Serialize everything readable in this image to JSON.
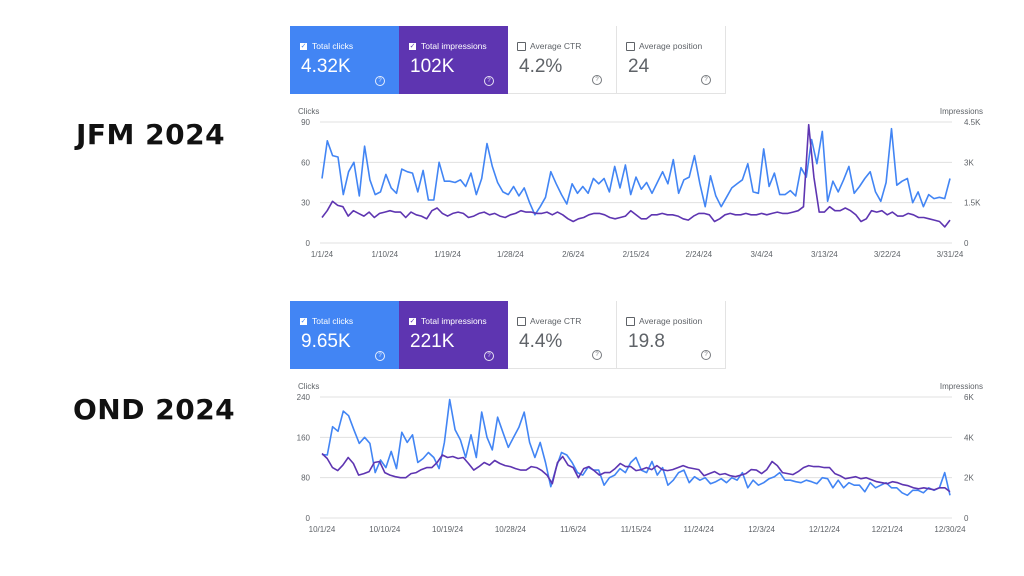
{
  "panels": [
    {
      "period_label": "JFM 2024",
      "metrics": [
        {
          "label": "Total clicks",
          "value": "4.32K",
          "checked": true
        },
        {
          "label": "Total impressions",
          "value": "102K",
          "checked": true
        },
        {
          "label": "Average CTR",
          "value": "4.2%",
          "checked": false
        },
        {
          "label": "Average position",
          "value": "24",
          "checked": false
        }
      ]
    },
    {
      "period_label": "OND 2024",
      "metrics": [
        {
          "label": "Total clicks",
          "value": "9.65K",
          "checked": true
        },
        {
          "label": "Total impressions",
          "value": "221K",
          "checked": true
        },
        {
          "label": "Average CTR",
          "value": "4.4%",
          "checked": false
        },
        {
          "label": "Average position",
          "value": "19.8",
          "checked": false
        }
      ]
    }
  ],
  "colors": {
    "clicks": "#4285f4",
    "impressions": "#5e35b1",
    "grid": "#e0e0e0"
  },
  "chart_data": [
    {
      "type": "line",
      "left_axis_label": "Clicks",
      "right_axis_label": "Impressions",
      "left_ticks": [
        "90",
        "60",
        "30",
        "0"
      ],
      "left_ylim": [
        0,
        90
      ],
      "right_ticks": [
        "4.5K",
        "3K",
        "1.5K",
        "0"
      ],
      "right_ylim": [
        0,
        4500
      ],
      "x_tick_labels": [
        "1/1/24",
        "1/10/24",
        "1/19/24",
        "1/28/24",
        "2/6/24",
        "2/15/24",
        "2/24/24",
        "3/4/24",
        "3/13/24",
        "3/22/24",
        "3/31/24"
      ],
      "series": [
        {
          "name": "Clicks",
          "axis": "left",
          "values": [
            48,
            76,
            65,
            64,
            36,
            53,
            60,
            35,
            72,
            47,
            36,
            38,
            51,
            41,
            37,
            55,
            53,
            52,
            38,
            54,
            32,
            32,
            60,
            46,
            46,
            45,
            47,
            42,
            52,
            36,
            48,
            74,
            57,
            45,
            38,
            36,
            42,
            35,
            41,
            30,
            21,
            27,
            34,
            53,
            44,
            36,
            29,
            44,
            37,
            42,
            37,
            48,
            44,
            48,
            38,
            57,
            41,
            58,
            36,
            49,
            40,
            45,
            37,
            45,
            53,
            44,
            62,
            37,
            47,
            49,
            65,
            44,
            27,
            50,
            35,
            27,
            34,
            41,
            44,
            47,
            59,
            38,
            37,
            70,
            42,
            52,
            36,
            36,
            39,
            35,
            56,
            49,
            77,
            59,
            83,
            31,
            46,
            38,
            47,
            57,
            37,
            42,
            48,
            53,
            38,
            31,
            45,
            85,
            43,
            46,
            48,
            30,
            38,
            27,
            36,
            33,
            34,
            33,
            48
          ]
        },
        {
          "name": "Impressions",
          "axis": "left",
          "values": [
            19,
            24,
            31,
            28,
            27,
            20,
            24,
            22,
            20,
            23,
            19,
            22,
            23,
            24,
            23,
            23,
            19,
            23,
            21,
            20,
            18,
            24,
            26,
            22,
            20,
            22,
            23,
            22,
            19,
            20,
            22,
            23,
            21,
            22,
            20,
            19,
            21,
            22,
            24,
            23,
            23,
            22,
            22,
            23,
            21,
            23,
            21,
            18,
            16,
            18,
            19,
            21,
            22,
            22,
            21,
            19,
            18,
            19,
            20,
            24,
            21,
            18,
            18,
            21,
            21,
            22,
            21,
            21,
            20,
            18,
            17,
            20,
            22,
            22,
            21,
            16,
            18,
            21,
            22,
            21,
            21,
            22,
            21,
            21,
            22,
            21,
            22,
            23,
            22,
            22,
            23,
            24,
            27,
            88,
            49,
            23,
            23,
            27,
            24,
            24,
            26,
            24,
            21,
            16,
            18,
            24,
            23,
            24,
            21,
            23,
            20,
            20,
            22,
            21,
            19,
            19,
            18,
            17,
            16,
            12,
            17
          ]
        }
      ]
    },
    {
      "type": "line",
      "left_axis_label": "Clicks",
      "right_axis_label": "Impressions",
      "left_ticks": [
        "240",
        "160",
        "80",
        "0"
      ],
      "left_ylim": [
        0,
        240
      ],
      "right_ticks": [
        "6K",
        "4K",
        "2K",
        "0"
      ],
      "right_ylim": [
        0,
        6000
      ],
      "x_tick_labels": [
        "10/1/24",
        "10/10/24",
        "10/19/24",
        "10/28/24",
        "11/6/24",
        "11/15/24",
        "11/24/24",
        "12/3/24",
        "12/12/24",
        "12/21/24",
        "12/30/24"
      ],
      "series": [
        {
          "name": "Clicks",
          "axis": "left",
          "values": [
            126,
            125,
            181,
            172,
            212,
            203,
            175,
            148,
            160,
            148,
            90,
            115,
            100,
            132,
            98,
            170,
            150,
            165,
            110,
            118,
            130,
            120,
            98,
            150,
            235,
            175,
            155,
            120,
            165,
            120,
            210,
            160,
            135,
            200,
            170,
            140,
            160,
            180,
            210,
            150,
            120,
            150,
            110,
            62,
            100,
            130,
            125,
            110,
            90,
            85,
            101,
            95,
            95,
            65,
            80,
            85,
            98,
            90,
            110,
            120,
            95,
            90,
            112,
            85,
            100,
            65,
            75,
            90,
            95,
            70,
            82,
            75,
            80,
            68,
            72,
            78,
            70,
            80,
            75,
            90,
            60,
            75,
            65,
            70,
            78,
            82,
            90,
            75,
            75,
            72,
            70,
            75,
            72,
            68,
            80,
            78,
            60,
            75,
            60,
            70,
            65,
            65,
            52,
            70,
            60,
            65,
            70,
            60,
            60,
            50,
            45,
            55,
            55,
            50,
            60,
            55,
            60,
            90,
            45
          ]
        },
        {
          "name": "Impressions",
          "axis": "left",
          "values": [
            128,
            118,
            100,
            94,
            105,
            120,
            108,
            85,
            88,
            92,
            110,
            112,
            90,
            85,
            82,
            80,
            80,
            88,
            90,
            96,
            100,
            100,
            110,
            125,
            120,
            122,
            118,
            120,
            108,
            95,
            102,
            110,
            105,
            114,
            108,
            104,
            102,
            98,
            95,
            95,
            102,
            100,
            94,
            85,
            68,
            110,
            122,
            105,
            100,
            80,
            98,
            102,
            94,
            85,
            90,
            90,
            98,
            108,
            102,
            102,
            94,
            96,
            100,
            96,
            104,
            96,
            94,
            96,
            100,
            104,
            100,
            98,
            96,
            84,
            88,
            92,
            86,
            88,
            84,
            82,
            85,
            88,
            96,
            95,
            88,
            96,
            112,
            104,
            90,
            88,
            86,
            92,
            100,
            104,
            102,
            102,
            100,
            100,
            88,
            84,
            78,
            80,
            82,
            78,
            80,
            76,
            72,
            70,
            68,
            72,
            70,
            66,
            64,
            60,
            58,
            60,
            58,
            56,
            60,
            60,
            52
          ]
        }
      ]
    }
  ]
}
